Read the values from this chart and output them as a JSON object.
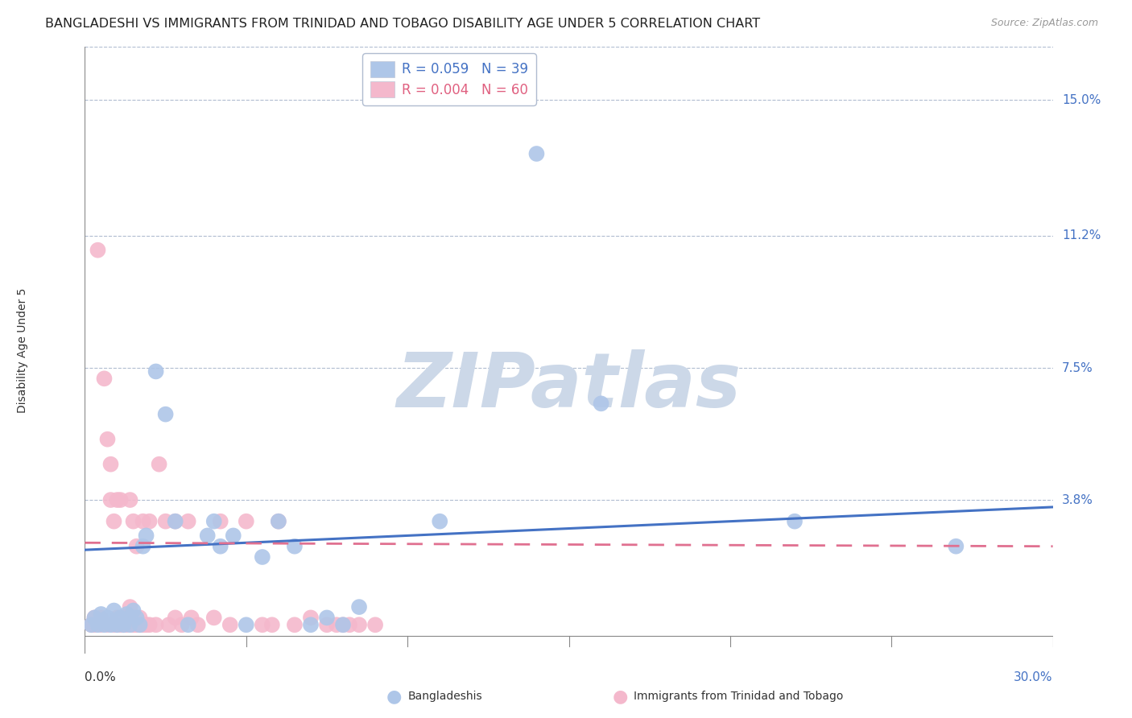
{
  "title": "BANGLADESHI VS IMMIGRANTS FROM TRINIDAD AND TOBAGO DISABILITY AGE UNDER 5 CORRELATION CHART",
  "source": "Source: ZipAtlas.com",
  "ylabel": "Disability Age Under 5",
  "ytick_labels": [
    "15.0%",
    "11.2%",
    "7.5%",
    "3.8%"
  ],
  "ytick_values": [
    0.15,
    0.112,
    0.075,
    0.038
  ],
  "xlim": [
    0.0,
    0.3
  ],
  "ylim": [
    -0.005,
    0.165
  ],
  "legend_entries": [
    {
      "label": "R = 0.059   N = 39",
      "color": "#aec6e8"
    },
    {
      "label": "R = 0.004   N = 60",
      "color": "#f4b8cc"
    }
  ],
  "bangladeshi_scatter": [
    [
      0.002,
      0.003
    ],
    [
      0.003,
      0.005
    ],
    [
      0.004,
      0.003
    ],
    [
      0.005,
      0.006
    ],
    [
      0.006,
      0.003
    ],
    [
      0.007,
      0.005
    ],
    [
      0.008,
      0.003
    ],
    [
      0.009,
      0.007
    ],
    [
      0.01,
      0.003
    ],
    [
      0.011,
      0.005
    ],
    [
      0.012,
      0.003
    ],
    [
      0.013,
      0.006
    ],
    [
      0.014,
      0.003
    ],
    [
      0.015,
      0.007
    ],
    [
      0.016,
      0.005
    ],
    [
      0.017,
      0.003
    ],
    [
      0.018,
      0.025
    ],
    [
      0.019,
      0.028
    ],
    [
      0.022,
      0.074
    ],
    [
      0.025,
      0.062
    ],
    [
      0.028,
      0.032
    ],
    [
      0.032,
      0.003
    ],
    [
      0.038,
      0.028
    ],
    [
      0.04,
      0.032
    ],
    [
      0.042,
      0.025
    ],
    [
      0.046,
      0.028
    ],
    [
      0.05,
      0.003
    ],
    [
      0.055,
      0.022
    ],
    [
      0.06,
      0.032
    ],
    [
      0.065,
      0.025
    ],
    [
      0.07,
      0.003
    ],
    [
      0.075,
      0.005
    ],
    [
      0.08,
      0.003
    ],
    [
      0.085,
      0.008
    ],
    [
      0.11,
      0.032
    ],
    [
      0.14,
      0.135
    ],
    [
      0.16,
      0.065
    ],
    [
      0.22,
      0.032
    ],
    [
      0.27,
      0.025
    ]
  ],
  "trinidad_scatter": [
    [
      0.002,
      0.003
    ],
    [
      0.003,
      0.005
    ],
    [
      0.003,
      0.003
    ],
    [
      0.004,
      0.108
    ],
    [
      0.005,
      0.003
    ],
    [
      0.005,
      0.005
    ],
    [
      0.006,
      0.072
    ],
    [
      0.007,
      0.003
    ],
    [
      0.007,
      0.055
    ],
    [
      0.008,
      0.048
    ],
    [
      0.008,
      0.038
    ],
    [
      0.009,
      0.032
    ],
    [
      0.009,
      0.003
    ],
    [
      0.01,
      0.005
    ],
    [
      0.01,
      0.003
    ],
    [
      0.01,
      0.038
    ],
    [
      0.011,
      0.003
    ],
    [
      0.011,
      0.038
    ],
    [
      0.012,
      0.003
    ],
    [
      0.012,
      0.005
    ],
    [
      0.013,
      0.003
    ],
    [
      0.013,
      0.005
    ],
    [
      0.014,
      0.008
    ],
    [
      0.014,
      0.038
    ],
    [
      0.015,
      0.003
    ],
    [
      0.015,
      0.032
    ],
    [
      0.016,
      0.003
    ],
    [
      0.016,
      0.025
    ],
    [
      0.017,
      0.003
    ],
    [
      0.017,
      0.005
    ],
    [
      0.018,
      0.003
    ],
    [
      0.018,
      0.032
    ],
    [
      0.019,
      0.003
    ],
    [
      0.02,
      0.003
    ],
    [
      0.02,
      0.032
    ],
    [
      0.022,
      0.003
    ],
    [
      0.023,
      0.048
    ],
    [
      0.025,
      0.032
    ],
    [
      0.026,
      0.003
    ],
    [
      0.028,
      0.032
    ],
    [
      0.028,
      0.005
    ],
    [
      0.03,
      0.003
    ],
    [
      0.032,
      0.032
    ],
    [
      0.033,
      0.005
    ],
    [
      0.035,
      0.003
    ],
    [
      0.04,
      0.005
    ],
    [
      0.042,
      0.032
    ],
    [
      0.045,
      0.003
    ],
    [
      0.05,
      0.032
    ],
    [
      0.055,
      0.003
    ],
    [
      0.058,
      0.003
    ],
    [
      0.06,
      0.032
    ],
    [
      0.065,
      0.003
    ],
    [
      0.07,
      0.005
    ],
    [
      0.075,
      0.003
    ],
    [
      0.078,
      0.003
    ],
    [
      0.08,
      0.003
    ],
    [
      0.082,
      0.003
    ],
    [
      0.085,
      0.003
    ],
    [
      0.09,
      0.003
    ]
  ],
  "bangladeshi_line_x": [
    0.0,
    0.3
  ],
  "bangladeshi_line_y": [
    0.024,
    0.036
  ],
  "bangladeshi_line_color": "#4472c4",
  "bangladeshi_line_lw": 2.2,
  "trinidad_line_x": [
    0.0,
    0.3
  ],
  "trinidad_line_y": [
    0.026,
    0.025
  ],
  "trinidad_line_color": "#e07090",
  "trinidad_line_lw": 2.0,
  "scatter_size": 200,
  "bangladeshi_color": "#aec6e8",
  "trinidad_color": "#f4b8cc",
  "bg_color": "#ffffff",
  "watermark": "ZIPatlas",
  "watermark_color": "#ccd8e8",
  "grid_color": "#b0bcd0",
  "title_fontsize": 11.5,
  "source_fontsize": 9,
  "axis_label_fontsize": 10,
  "tick_fontsize": 11
}
